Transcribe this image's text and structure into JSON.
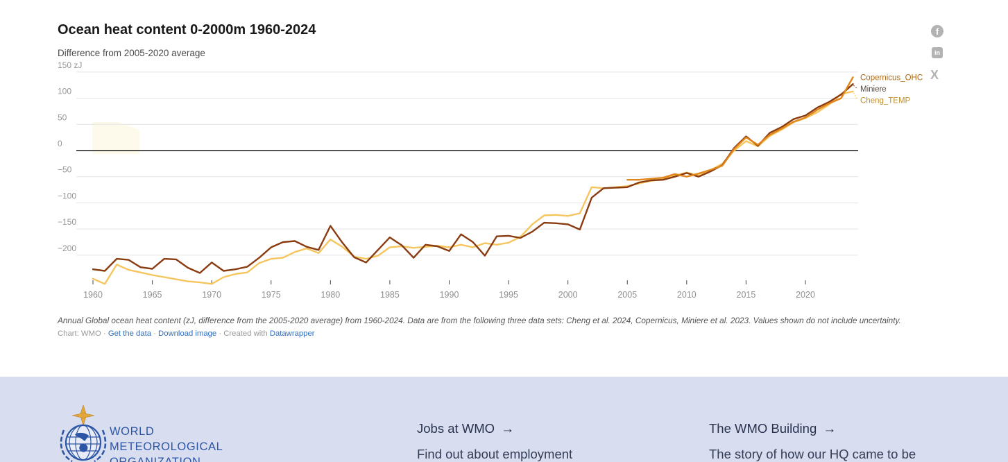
{
  "chart": {
    "title": "Ocean heat content 0-2000m 1960-2024",
    "subtitle": "Difference from 2005-2020 average",
    "notes": "Annual Global ocean heat content (zJ, difference from the 2005-2020 average) from 1960-2024. Data are from the following three data sets: Cheng et al. 2024, Copernicus, Miniere et al. 2023. Values shown do not include uncertainty.",
    "credit": {
      "prefix": "Chart: WMO",
      "sep": "·",
      "get_data": "Get the data",
      "download_image": "Download image",
      "created_with": "Created with",
      "tool": "Datawrapper"
    }
  },
  "social": {
    "facebook": "f",
    "linkedin": "in",
    "x": "X"
  },
  "footer": {
    "org_lines": [
      "WORLD",
      "METEOROLOGICAL",
      "ORGANIZATION"
    ],
    "links": [
      {
        "title": "Jobs at WMO",
        "arrow": "→",
        "subtitle": "Find out about employment"
      },
      {
        "title": "The WMO Building",
        "arrow": "→",
        "subtitle": "The story of how our HQ came to be"
      }
    ]
  },
  "chart_data": {
    "type": "line",
    "title": "Ocean heat content 0-2000m 1960-2024",
    "subtitle": "Difference from 2005-2020 average",
    "unit": "zJ",
    "xlim": [
      1959.5,
      2025
    ],
    "ylim": [
      -260,
      155
    ],
    "grid": true,
    "legend_position": "right-of-line-ends",
    "x_ticks": [
      1960,
      1965,
      1970,
      1975,
      1980,
      1985,
      1990,
      1995,
      2000,
      2005,
      2010,
      2015,
      2020
    ],
    "y_ticks": [
      {
        "value": 150,
        "label": "150 zJ"
      },
      {
        "value": 100,
        "label": "100"
      },
      {
        "value": 50,
        "label": "50"
      },
      {
        "value": 0,
        "label": "0"
      },
      {
        "value": -50,
        "label": "−50"
      },
      {
        "value": -100,
        "label": "−100"
      },
      {
        "value": -150,
        "label": "−150"
      },
      {
        "value": -200,
        "label": "−200"
      }
    ],
    "series": [
      {
        "name": "Copernicus_OHC",
        "color": "#e0861a",
        "label_color": "#ad6a13",
        "start_year": 2005,
        "values": [
          -56,
          -56,
          -54,
          -52,
          -45,
          -50,
          -44,
          -37,
          -29,
          3,
          25,
          11,
          30,
          42,
          55,
          63,
          78,
          90,
          100,
          140
        ]
      },
      {
        "name": "Miniere",
        "color": "#8a3b10",
        "label_color": "#55473b",
        "start_year": 1960,
        "values": [
          -227,
          -230,
          -207,
          -209,
          -223,
          -226,
          -207,
          -208,
          -224,
          -234,
          -214,
          -230,
          -227,
          -222,
          -205,
          -185,
          -175,
          -173,
          -184,
          -190,
          -144,
          -176,
          -204,
          -214,
          -190,
          -166,
          -181,
          -205,
          -180,
          -183,
          -192,
          -160,
          -175,
          -201,
          -164,
          -163,
          -167,
          -155,
          -138,
          -139,
          -141,
          -151,
          -90,
          -72,
          -71,
          -70,
          -61,
          -57,
          -56,
          -50,
          -43,
          -50,
          -40,
          -28,
          5,
          27,
          9,
          34,
          45,
          60,
          67,
          82,
          93,
          107,
          127
        ]
      },
      {
        "name": "Cheng_TEMP",
        "color": "#f5c55e",
        "label_color": "#bf8f2f",
        "start_year": 1960,
        "values": [
          -245,
          -255,
          -218,
          -228,
          -233,
          -238,
          -242,
          -246,
          -250,
          -252,
          -255,
          -242,
          -236,
          -233,
          -215,
          -207,
          -205,
          -194,
          -187,
          -196,
          -170,
          -184,
          -203,
          -207,
          -201,
          -185,
          -183,
          -186,
          -184,
          -182,
          -185,
          -180,
          -185,
          -177,
          -180,
          -176,
          -165,
          -141,
          -124,
          -123,
          -125,
          -120,
          -70,
          -72,
          -70,
          -68,
          -63,
          -58,
          -55,
          -48,
          -42,
          -48,
          -38,
          -25,
          0,
          18,
          8,
          28,
          40,
          54,
          62,
          73,
          88,
          108,
          113
        ]
      }
    ]
  }
}
